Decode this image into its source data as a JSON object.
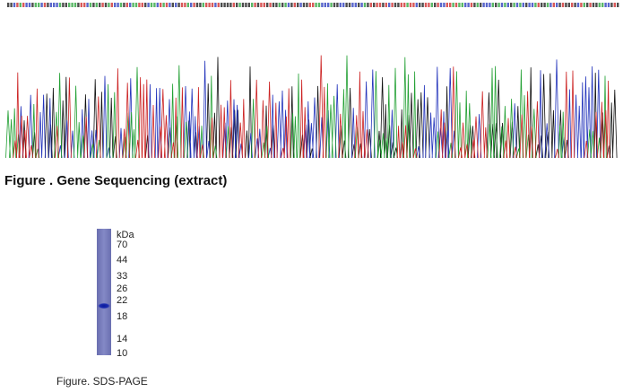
{
  "sequencing": {
    "caption": "Figure . Gene Sequencing (extract)"
  },
  "sds_page": {
    "unit": "kDa",
    "markers": [
      70,
      44,
      33,
      26,
      22,
      18,
      14,
      10
    ],
    "caption": "Figure. SDS-PAGE"
  }
}
